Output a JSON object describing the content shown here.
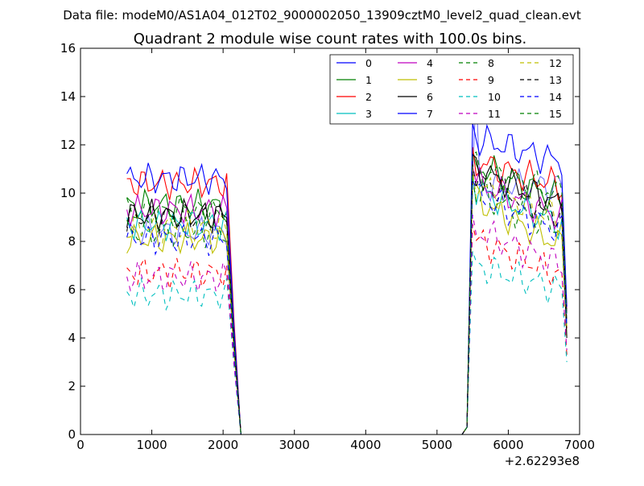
{
  "chart_data": {
    "type": "line",
    "suptitle": "Data file: modeM0/AS1A04_012T02_9000002050_13909cztM0_level2_quad_clean.evt",
    "title": "Quadrant 2 module wise count rates with 100.0s bins.",
    "xlabel": "",
    "ylabel": "",
    "x_offset_label": "+2.62293e8",
    "xlim": [
      0,
      7000
    ],
    "ylim": [
      0,
      16
    ],
    "x_ticks": [
      0,
      1000,
      2000,
      3000,
      4000,
      5000,
      6000,
      7000
    ],
    "x_tick_labels": [
      "0",
      "1000",
      "2000",
      "3000",
      "4000",
      "5000",
      "6000",
      "7000"
    ],
    "y_ticks": [
      0,
      2,
      4,
      6,
      8,
      10,
      12,
      14,
      16
    ],
    "y_tick_labels": [
      "0",
      "2",
      "4",
      "6",
      "8",
      "10",
      "12",
      "14",
      "16"
    ],
    "grid": false,
    "legend_position": "top-right",
    "legend_columns": 4,
    "x_segments": {
      "seg1": [
        650,
        700,
        750,
        800,
        850,
        900,
        950,
        1000,
        1050,
        1100,
        1150,
        1200,
        1250,
        1300,
        1350,
        1400,
        1450,
        1500,
        1550,
        1600,
        1650,
        1700,
        1750,
        1800,
        1850,
        1900,
        1950,
        2000,
        2050
      ],
      "tail1": [
        2150,
        2250,
        2350,
        5350
      ],
      "head2": [
        5420
      ],
      "seg2": [
        5500,
        5550,
        5600,
        5650,
        5700,
        5750,
        5800,
        5850,
        5900,
        5950,
        6000,
        6050,
        6100,
        6150,
        6200,
        6250,
        6300,
        6350,
        6400,
        6450,
        6500,
        6550,
        6600,
        6650,
        6700,
        6750
      ],
      "tail2": [
        6820
      ]
    },
    "series": [
      {
        "name": "0",
        "color": "#0000ff",
        "dash": "solid",
        "opacity": 1,
        "base1": 8.4,
        "base2": 10.3,
        "slope": 0.0,
        "end": 5.0
      },
      {
        "name": "1",
        "color": "#008000",
        "dash": "solid",
        "opacity": 1,
        "base1": 9.5,
        "base2": 11.2,
        "slope": -0.3,
        "end": 5.2
      },
      {
        "name": "2",
        "color": "#ff0000",
        "dash": "solid",
        "opacity": 1,
        "base1": 10.4,
        "base2": 11.3,
        "slope": -0.2,
        "end": 4.4
      },
      {
        "name": "3",
        "color": "#00bfbf",
        "dash": "solid",
        "opacity": 1,
        "base1": 8.7,
        "base2": 10.2,
        "slope": -0.3,
        "end": 4.6
      },
      {
        "name": "4",
        "color": "#bf00bf",
        "dash": "solid",
        "opacity": 1,
        "base1": 9.3,
        "base2": 10.5,
        "slope": -0.3,
        "end": 5.1
      },
      {
        "name": "5",
        "color": "#bfbf00",
        "dash": "solid",
        "opacity": 1,
        "base1": 8.1,
        "base2": 9.8,
        "slope": -0.4,
        "end": 4.1
      },
      {
        "name": "6",
        "color": "#000000",
        "dash": "solid",
        "opacity": 1,
        "base1": 9.1,
        "base2": 11.0,
        "slope": -0.3,
        "end": 4.0
      },
      {
        "name": "7",
        "color": "#0000ff",
        "dash": "solid",
        "opacity": 1,
        "base1": 10.6,
        "base2": 12.3,
        "slope": -0.2,
        "end": 5.3
      },
      {
        "name": "8",
        "color": "#008000",
        "dash": "dashed",
        "opacity": 1,
        "base1": 8.4,
        "base2": 10.0,
        "slope": -0.3,
        "end": 4.3
      },
      {
        "name": "9",
        "color": "#ff0000",
        "dash": "dashed",
        "opacity": 1,
        "base1": 6.7,
        "base2": 8.1,
        "slope": -0.3,
        "end": 3.3
      },
      {
        "name": "10",
        "color": "#00bfbf",
        "dash": "dashed",
        "opacity": 1,
        "base1": 5.8,
        "base2": 7.0,
        "slope": -0.2,
        "end": 3.0
      },
      {
        "name": "11",
        "color": "#bf00bf",
        "dash": "dashed",
        "opacity": 1,
        "base1": 6.5,
        "base2": 8.5,
        "slope": -0.3,
        "end": 3.5
      },
      {
        "name": "12",
        "color": "#bfbf00",
        "dash": "dashed",
        "opacity": 1,
        "base1": 8.6,
        "base2": 10.4,
        "slope": -0.3,
        "end": 4.5
      },
      {
        "name": "13",
        "color": "#000000",
        "dash": "dashed",
        "opacity": 1,
        "base1": 9.0,
        "base2": 10.6,
        "slope": -0.3,
        "end": 4.6
      },
      {
        "name": "14",
        "color": "#0000ff",
        "dash": "dashed",
        "opacity": 1,
        "base1": 8.1,
        "base2": 9.9,
        "slope": -0.3,
        "end": 4.4
      },
      {
        "name": "15",
        "color": "#008000",
        "dash": "dashed",
        "opacity": 1,
        "base1": 9.2,
        "base2": 11.0,
        "slope": -0.2,
        "end": 4.9
      }
    ],
    "peak": {
      "series": "0",
      "x": 5550,
      "y": 14.2
    }
  }
}
